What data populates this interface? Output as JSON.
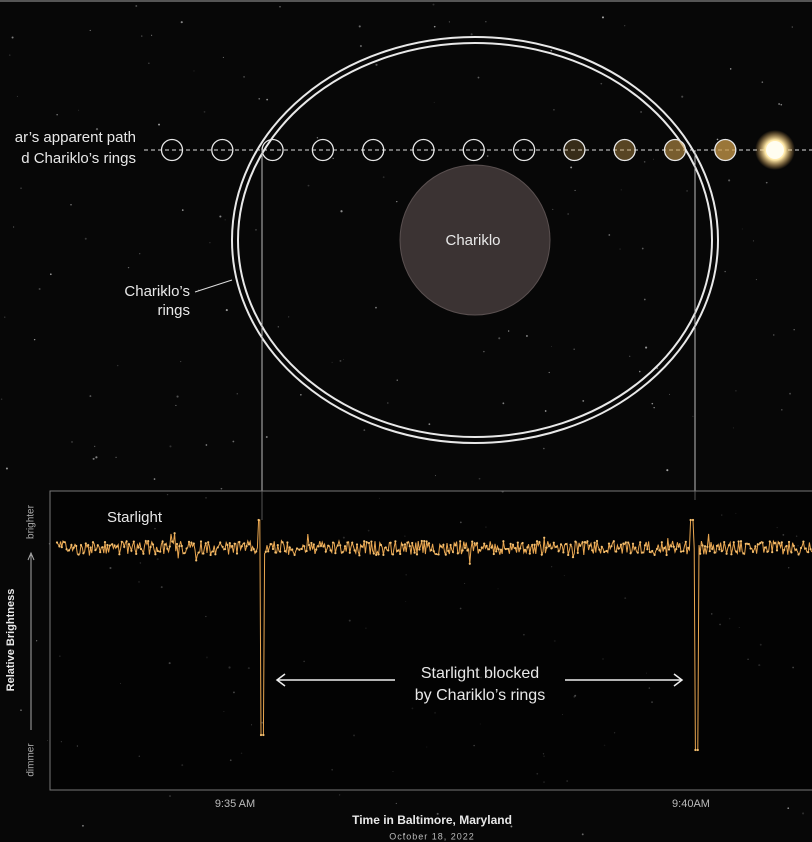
{
  "path_label": [
    "ar’s apparent path",
    "d Chariklo’s rings"
  ],
  "body_label": "Chariklo",
  "rings_label": [
    "Chariklo’s",
    "rings"
  ],
  "plot": {
    "series_label": "Starlight",
    "y_axis": {
      "title": "Relative Brightness",
      "high": "brighter",
      "low": "dimmer"
    },
    "annotation": [
      "Starlight blocked",
      "by Chariklo’s rings"
    ],
    "x_ticks": [
      "9:35 AM",
      "9:40AM"
    ],
    "x_axis": {
      "title": "Time in Baltimore, Maryland",
      "subtitle": "October 18, 2022"
    }
  }
}
